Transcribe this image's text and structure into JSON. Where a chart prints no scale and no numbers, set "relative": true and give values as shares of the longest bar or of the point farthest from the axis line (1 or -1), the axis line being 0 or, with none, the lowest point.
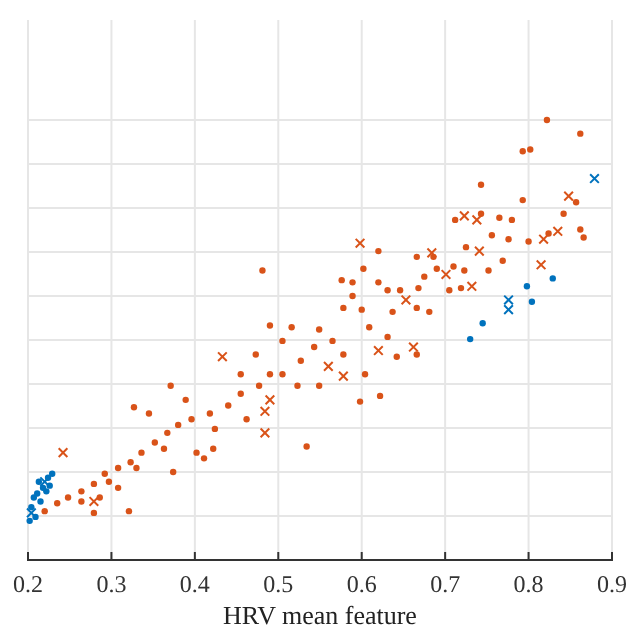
{
  "chart_data": {
    "type": "scatter",
    "xlabel": "HRV mean feature",
    "xlim": [
      0.2,
      0.9
    ],
    "xticks": [
      0.2,
      0.3,
      0.4,
      0.5,
      0.6,
      0.7,
      0.8,
      0.9
    ],
    "relative": true,
    "grid": true,
    "series": [
      {
        "color": "#d95319",
        "marker": "circle",
        "x": [
          0.481,
          0.822,
          0.862,
          0.793,
          0.802,
          0.743,
          0.793,
          0.857,
          0.842,
          0.712,
          0.743,
          0.765,
          0.78,
          0.725,
          0.756,
          0.776,
          0.8,
          0.862,
          0.866,
          0.824,
          0.62,
          0.602,
          0.666,
          0.686,
          0.69,
          0.675,
          0.71,
          0.723,
          0.752,
          0.769,
          0.576,
          0.589,
          0.62,
          0.631,
          0.646,
          0.668,
          0.705,
          0.719,
          0.589,
          0.371,
          0.321,
          0.279,
          0.327,
          0.598,
          0.622,
          0.534,
          0.411,
          0.422,
          0.49,
          0.516,
          0.549,
          0.578,
          0.6,
          0.637,
          0.666,
          0.681,
          0.666,
          0.642,
          0.604,
          0.527,
          0.505,
          0.477,
          0.455,
          0.44,
          0.418,
          0.396,
          0.38,
          0.367,
          0.352,
          0.336,
          0.323,
          0.308,
          0.292,
          0.279,
          0.264,
          0.248,
          0.235,
          0.22,
          0.345,
          0.389,
          0.402,
          0.374,
          0.286,
          0.462,
          0.424,
          0.505,
          0.543,
          0.565,
          0.609,
          0.631,
          0.578,
          0.523,
          0.49,
          0.549,
          0.473,
          0.455,
          0.297,
          0.33,
          0.363,
          0.264,
          0.308
        ],
        "values": [
          0.658,
          1.0,
          0.969,
          0.929,
          0.933,
          0.853,
          0.818,
          0.813,
          0.787,
          0.773,
          0.787,
          0.778,
          0.773,
          0.711,
          0.738,
          0.729,
          0.724,
          0.751,
          0.733,
          0.742,
          0.702,
          0.662,
          0.689,
          0.689,
          0.662,
          0.644,
          0.667,
          0.658,
          0.658,
          0.68,
          0.636,
          0.631,
          0.631,
          0.613,
          0.613,
          0.618,
          0.613,
          0.618,
          0.6,
          0.396,
          0.111,
          0.107,
          0.347,
          0.36,
          0.373,
          0.258,
          0.231,
          0.253,
          0.533,
          0.529,
          0.524,
          0.573,
          0.569,
          0.564,
          0.573,
          0.564,
          0.467,
          0.462,
          0.422,
          0.453,
          0.422,
          0.396,
          0.378,
          0.351,
          0.333,
          0.32,
          0.307,
          0.289,
          0.267,
          0.244,
          0.222,
          0.209,
          0.196,
          0.173,
          0.156,
          0.142,
          0.129,
          0.111,
          0.333,
          0.364,
          0.244,
          0.2,
          0.142,
          0.32,
          0.298,
          0.498,
          0.484,
          0.498,
          0.529,
          0.507,
          0.467,
          0.396,
          0.422,
          0.396,
          0.467,
          0.422,
          0.178,
          0.209,
          0.253,
          0.133,
          0.164
        ]
      },
      {
        "color": "#d95319",
        "marker": "cross",
        "x": [
          0.598,
          0.723,
          0.738,
          0.741,
          0.848,
          0.835,
          0.818,
          0.815,
          0.701,
          0.732,
          0.653,
          0.684,
          0.484,
          0.484,
          0.49,
          0.433,
          0.662,
          0.578,
          0.56,
          0.242,
          0.279,
          0.62
        ],
        "values": [
          0.72,
          0.782,
          0.773,
          0.702,
          0.827,
          0.747,
          0.729,
          0.671,
          0.649,
          0.622,
          0.591,
          0.698,
          0.289,
          0.338,
          0.364,
          0.462,
          0.484,
          0.418,
          0.44,
          0.244,
          0.133,
          0.476
        ]
      },
      {
        "color": "#0072bd",
        "marker": "circle",
        "x": [
          0.829,
          0.798,
          0.73,
          0.745,
          0.804,
          0.204,
          0.211,
          0.218,
          0.224,
          0.229,
          0.209,
          0.202,
          0.215,
          0.222,
          0.207,
          0.213,
          0.226
        ],
        "values": [
          0.64,
          0.622,
          0.502,
          0.538,
          0.587,
          0.12,
          0.151,
          0.164,
          0.187,
          0.196,
          0.098,
          0.089,
          0.133,
          0.156,
          0.142,
          0.178,
          0.169
        ]
      },
      {
        "color": "#0072bd",
        "marker": "cross",
        "x": [
          0.879,
          0.776,
          0.776,
          0.204,
          0.22
        ],
        "values": [
          0.867,
          0.591,
          0.569,
          0.107,
          0.178
        ]
      }
    ]
  }
}
